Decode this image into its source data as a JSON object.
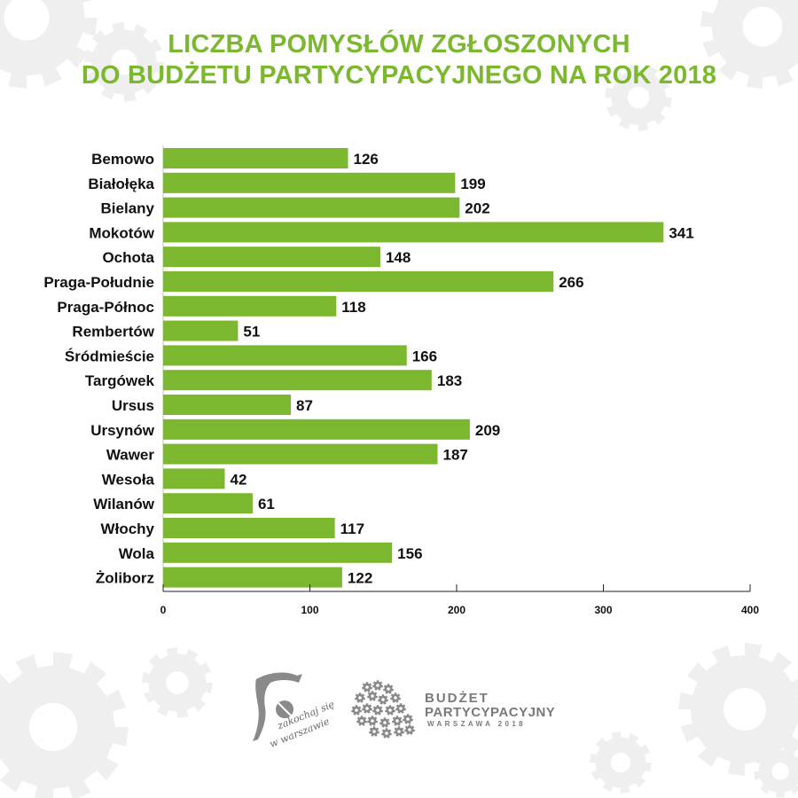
{
  "title_lines": [
    "LICZBA POMYSŁÓW ZGŁOSZONYCH",
    "DO BUDŻETU PARTYCYPACYJNEGO NA ROK 2018"
  ],
  "colors": {
    "accent": "#7cb82f",
    "bar": "#7cb82f",
    "text": "#111111",
    "gear": "#efefef",
    "logo": "#8a8a8a"
  },
  "chart_data": {
    "type": "bar",
    "orientation": "horizontal",
    "title": "LICZBA POMYSŁÓW ZGŁOSZONYCH DO BUDŻETU PARTYCYPACYJNEGO NA ROK 2018",
    "categories": [
      "Bemowo",
      "Białołęka",
      "Bielany",
      "Mokotów",
      "Ochota",
      "Praga-Południe",
      "Praga-Północ",
      "Rembertów",
      "Śródmieście",
      "Targówek",
      "Ursus",
      "Ursynów",
      "Wawer",
      "Wesoła",
      "Wilanów",
      "Włochy",
      "Wola",
      "Żoliborz"
    ],
    "values": [
      126,
      199,
      202,
      341,
      148,
      266,
      118,
      51,
      166,
      183,
      87,
      209,
      187,
      42,
      61,
      117,
      156,
      122
    ],
    "xlim": [
      0,
      400
    ],
    "xticks": [
      0,
      100,
      200,
      300,
      400
    ],
    "xlabel": "",
    "ylabel": "",
    "grid": false,
    "legend": "none",
    "data_labels": true
  },
  "logos": {
    "left_script": [
      "zakochaj się",
      "w warszawie"
    ],
    "right_lines": [
      "BUDŻET",
      "PARTYCYPACYJNY",
      "WARSZAWA 2018"
    ]
  }
}
